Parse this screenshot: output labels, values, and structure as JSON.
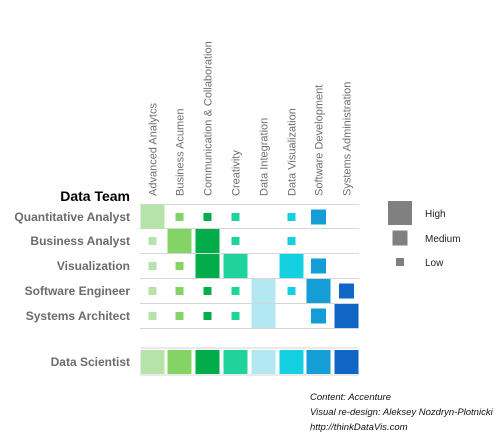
{
  "chart_data": {
    "type": "heatmap",
    "title": "Data Team",
    "columns": [
      {
        "name": "Advanced Analytcs",
        "color": "#b5e3a9"
      },
      {
        "name": "Business Acumen",
        "color": "#84d465"
      },
      {
        "name": "Communication & Collaboration",
        "color": "#02ac4a"
      },
      {
        "name": "Creativity",
        "color": "#1fd39a"
      },
      {
        "name": "Data Integration",
        "color": "#b3e8f2"
      },
      {
        "name": "Data Visualization",
        "color": "#14d0e0"
      },
      {
        "name": "Software Development",
        "color": "#159ed6"
      },
      {
        "name": "Systems Administration",
        "color": "#0f66c4"
      }
    ],
    "rows": [
      {
        "name": "Quantitative Analyst",
        "levels": [
          "high",
          "low",
          "low",
          "low",
          null,
          "low",
          "medium",
          null
        ]
      },
      {
        "name": "Business Analyst",
        "levels": [
          "low",
          "high",
          "high",
          "low",
          null,
          "low",
          null,
          null
        ]
      },
      {
        "name": "Visualization",
        "levels": [
          "low",
          "low",
          "high",
          "high",
          null,
          "high",
          "medium",
          null
        ]
      },
      {
        "name": "Software Engineer",
        "levels": [
          "low",
          "low",
          "low",
          "low",
          "high",
          "low",
          "high",
          "medium"
        ]
      },
      {
        "name": "Systems Architect",
        "levels": [
          "low",
          "low",
          "low",
          "low",
          "high",
          null,
          "medium",
          "high"
        ]
      }
    ],
    "summary_row": {
      "name": "Data Scientist",
      "levels": [
        "high",
        "high",
        "high",
        "high",
        "high",
        "high",
        "high",
        "high"
      ]
    },
    "legend": [
      {
        "label": "High",
        "level": "high"
      },
      {
        "label": "Medium",
        "level": "medium"
      },
      {
        "label": "Low",
        "level": "low"
      }
    ],
    "legend_color": "#808080",
    "grid": "horizontal row separators"
  },
  "credits": {
    "content": "Content: Accenture",
    "redesign": "Visual re-design: Aleksey Nozdryn-Plotnicki",
    "url": "http://thinkDataVis.com"
  }
}
